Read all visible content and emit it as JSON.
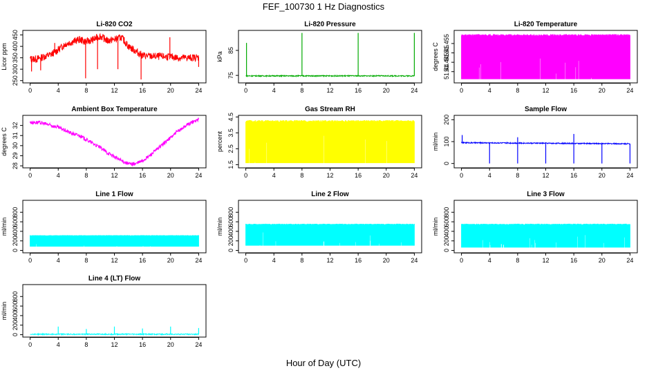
{
  "figure": {
    "title": "FEF_100730  1 Hz Diagnostics",
    "xlabel": "Hour of Day (UTC)"
  },
  "chart_data": [
    {
      "type": "line",
      "title": "Li-820 CO2",
      "ylabel": "Licor ppm",
      "color": "#ff0000",
      "xlim": [
        0,
        24
      ],
      "ylim": [
        240,
        470
      ],
      "xticks": [
        0,
        4,
        8,
        12,
        16,
        20,
        24
      ],
      "yticks": [
        250,
        300,
        350,
        400,
        450
      ],
      "x": [
        0,
        1,
        2,
        3,
        4,
        5,
        6,
        7,
        8,
        9,
        10,
        11,
        12,
        13,
        14,
        15,
        16,
        17,
        18,
        19,
        20,
        21,
        22,
        23,
        24
      ],
      "y": [
        345,
        345,
        355,
        365,
        385,
        410,
        420,
        430,
        420,
        430,
        445,
        425,
        430,
        440,
        400,
        380,
        360,
        357,
        356,
        355,
        355,
        350,
        350,
        350,
        352
      ],
      "spikes": [
        [
          0.2,
          290
        ],
        [
          1.5,
          295
        ],
        [
          3.5,
          415
        ],
        [
          7.9,
          260
        ],
        [
          9.6,
          300
        ],
        [
          12.5,
          300
        ],
        [
          13.4,
          440
        ],
        [
          15.8,
          255
        ],
        [
          19.9,
          440
        ],
        [
          24,
          310
        ]
      ]
    },
    {
      "type": "line",
      "title": "Li-820 Pressure",
      "ylabel": "kPa",
      "color": "#00aa00",
      "xlim": [
        0,
        24
      ],
      "ylim": [
        72,
        93
      ],
      "xticks": [
        0,
        4,
        8,
        12,
        16,
        20,
        24
      ],
      "yticks": [
        75,
        85
      ],
      "x": [
        0,
        24
      ],
      "y": [
        74.8,
        74.8
      ],
      "spikes": [
        [
          0.1,
          88
        ],
        [
          8,
          92
        ],
        [
          16,
          92
        ],
        [
          24,
          92
        ]
      ]
    },
    {
      "type": "area",
      "title": "Li-820 Temperature",
      "ylabel": "degrees C",
      "color": "#ff00ff",
      "xlim": [
        0,
        24
      ],
      "ylim": [
        51.434,
        51.462
      ],
      "xticks": [
        0,
        4,
        8,
        12,
        16,
        20,
        24
      ],
      "yticks": [
        51.44,
        51.445,
        51.45,
        51.455
      ],
      "band": [
        51.436,
        51.46
      ]
    },
    {
      "type": "line",
      "title": "Ambient Box Temperature",
      "ylabel": "degrees C",
      "color": "#ff00ff",
      "xlim": [
        0,
        24
      ],
      "ylim": [
        27.8,
        33.0
      ],
      "xticks": [
        0,
        4,
        8,
        12,
        16,
        20,
        24
      ],
      "yticks": [
        28,
        29,
        30,
        31,
        32
      ],
      "x": [
        0,
        1,
        2,
        3,
        4,
        5,
        6,
        7,
        8,
        9,
        10,
        11,
        12,
        13,
        14,
        15,
        16,
        17,
        18,
        19,
        20,
        21,
        22,
        23,
        24
      ],
      "y": [
        32.3,
        32.3,
        32.2,
        32.0,
        31.8,
        31.5,
        31.2,
        31.0,
        30.6,
        30.2,
        29.8,
        29.3,
        28.9,
        28.5,
        28.2,
        28.2,
        28.5,
        29.0,
        29.6,
        30.2,
        30.8,
        31.4,
        31.9,
        32.3,
        32.6
      ]
    },
    {
      "type": "area",
      "title": "Gas Stream RH",
      "ylabel": "percent",
      "color": "#ffff00",
      "xlim": [
        0,
        24
      ],
      "ylim": [
        1.3,
        4.6
      ],
      "xticks": [
        0,
        4,
        8,
        12,
        16,
        20,
        24
      ],
      "yticks": [
        1.5,
        2.5,
        3.5,
        4.5
      ],
      "band": [
        1.6,
        4.3
      ]
    },
    {
      "type": "line",
      "title": "Sample Flow",
      "ylabel": "ml/min",
      "color": "#0000ff",
      "xlim": [
        0,
        24
      ],
      "ylim": [
        -20,
        220
      ],
      "xticks": [
        0,
        4,
        8,
        12,
        16,
        20,
        24
      ],
      "yticks": [
        0,
        100,
        200
      ],
      "x": [
        0,
        24
      ],
      "y": [
        95,
        90
      ],
      "spikes": [
        [
          0.1,
          130
        ],
        [
          4,
          0
        ],
        [
          8,
          0
        ],
        [
          8,
          120
        ],
        [
          12,
          0
        ],
        [
          16,
          0
        ],
        [
          16,
          135
        ],
        [
          20,
          0
        ],
        [
          24,
          0
        ]
      ]
    },
    {
      "type": "area",
      "title": "Line 1 Flow",
      "ylabel": "ml/min",
      "color": "#00ffff",
      "xlim": [
        0,
        24
      ],
      "ylim": [
        -50,
        1050
      ],
      "xticks": [
        0,
        4,
        8,
        12,
        16,
        20,
        24
      ],
      "yticks": [
        0,
        200,
        400,
        600,
        800
      ],
      "band": [
        80,
        320
      ]
    },
    {
      "type": "area",
      "title": "Line 2 Flow",
      "ylabel": "ml/min",
      "color": "#00ffff",
      "xlim": [
        0,
        24
      ],
      "ylim": [
        -50,
        1050
      ],
      "xticks": [
        0,
        4,
        8,
        12,
        16,
        20,
        24
      ],
      "yticks": [
        0,
        200,
        400,
        600,
        800
      ],
      "band": [
        100,
        560
      ]
    },
    {
      "type": "area",
      "title": "Line 3 Flow",
      "ylabel": "ml/min",
      "color": "#00ffff",
      "xlim": [
        0,
        24
      ],
      "ylim": [
        -50,
        1050
      ],
      "xticks": [
        0,
        4,
        8,
        12,
        16,
        20,
        24
      ],
      "yticks": [
        0,
        200,
        400,
        600,
        800
      ],
      "band": [
        60,
        560
      ]
    },
    {
      "type": "line",
      "title": "Line 4 (LT) Flow",
      "ylabel": "ml/min",
      "color": "#00ffff",
      "xlim": [
        0,
        24
      ],
      "ylim": [
        -50,
        1050
      ],
      "xticks": [
        0,
        4,
        8,
        12,
        16,
        20,
        24
      ],
      "yticks": [
        0,
        200,
        400,
        600,
        800
      ],
      "x": [
        0,
        24
      ],
      "y": [
        10,
        10
      ],
      "spikes": [
        [
          4,
          170
        ],
        [
          8,
          120
        ],
        [
          12,
          170
        ],
        [
          16,
          130
        ],
        [
          20,
          170
        ],
        [
          24,
          140
        ]
      ]
    }
  ]
}
